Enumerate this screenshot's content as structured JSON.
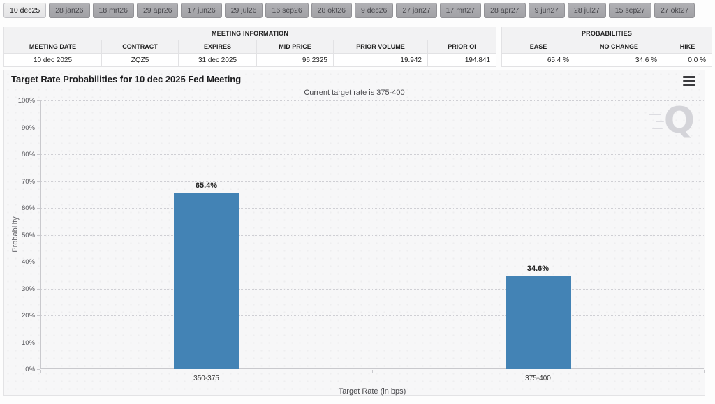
{
  "tabs": {
    "items": [
      {
        "label": "10 dec25",
        "selected": true
      },
      {
        "label": "28 jan26",
        "selected": false
      },
      {
        "label": "18 mrt26",
        "selected": false
      },
      {
        "label": "29 apr26",
        "selected": false
      },
      {
        "label": "17 jun26",
        "selected": false
      },
      {
        "label": "29 jul26",
        "selected": false
      },
      {
        "label": "16 sep26",
        "selected": false
      },
      {
        "label": "28 okt26",
        "selected": false
      },
      {
        "label": "9 dec26",
        "selected": false
      },
      {
        "label": "27 jan27",
        "selected": false
      },
      {
        "label": "17 mrt27",
        "selected": false
      },
      {
        "label": "28 apr27",
        "selected": false
      },
      {
        "label": "9 jun27",
        "selected": false
      },
      {
        "label": "28 jul27",
        "selected": false
      },
      {
        "label": "15 sep27",
        "selected": false
      },
      {
        "label": "27 okt27",
        "selected": false
      }
    ]
  },
  "meeting_info": {
    "title": "MEETING INFORMATION",
    "columns": [
      "MEETING DATE",
      "CONTRACT",
      "EXPIRES",
      "MID PRICE",
      "PRIOR VOLUME",
      "PRIOR OI"
    ],
    "values": [
      "10 dec 2025",
      "ZQZ5",
      "31 dec 2025",
      "96,2325",
      "19.942",
      "194.841"
    ]
  },
  "probabilities": {
    "title": "PROBABILITIES",
    "columns": [
      "EASE",
      "NO CHANGE",
      "HIKE"
    ],
    "values": [
      "65,4 %",
      "34,6 %",
      "0,0 %"
    ]
  },
  "chart": {
    "title": "Target Rate Probabilities for 10 dec 2025 Fed Meeting",
    "subtitle": "Current target rate is 375-400",
    "watermark": "Q"
  },
  "chart_data": {
    "type": "bar",
    "title": "Target Rate Probabilities for 10 dec 2025 Fed Meeting",
    "subtitle": "Current target rate is 375-400",
    "categories": [
      "350-375",
      "375-400"
    ],
    "values": [
      65.4,
      34.6
    ],
    "value_labels": [
      "65.4%",
      "34.6%"
    ],
    "xlabel": "Target Rate (in bps)",
    "ylabel": "Probability",
    "ylim": [
      0,
      100
    ],
    "ytick_step": 10,
    "ytick_suffix": "%",
    "bar_color": "#4383b5",
    "grid": "dotted-horizontal",
    "legend": "none"
  }
}
